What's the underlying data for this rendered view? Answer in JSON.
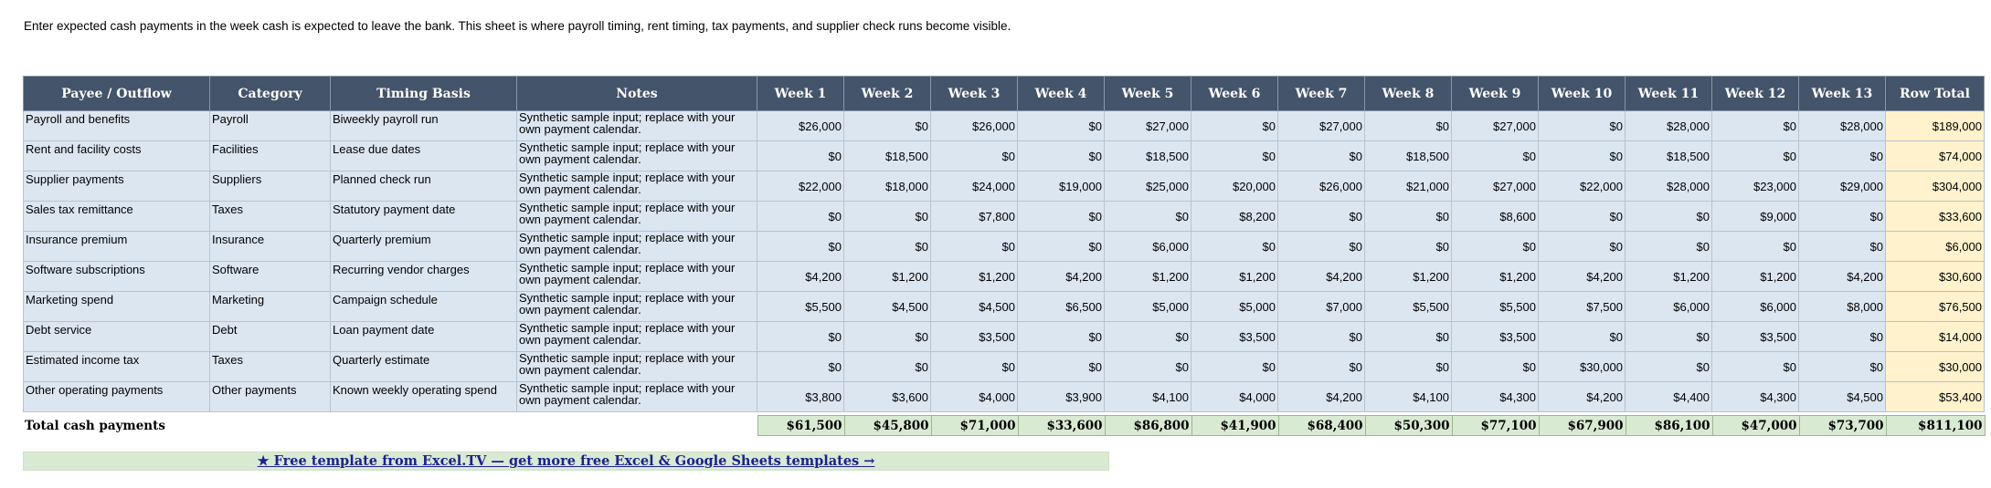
{
  "intro": "Enter expected cash payments in the week cash is expected to leave the bank. This sheet is where payroll timing, rent timing, tax payments, and supplier check runs become visible.",
  "headers": [
    "Payee / Outflow",
    "Category",
    "Timing Basis",
    "Notes",
    "Week 1",
    "Week 2",
    "Week 3",
    "Week 4",
    "Week 5",
    "Week 6",
    "Week 7",
    "Week 8",
    "Week 9",
    "Week 10",
    "Week 11",
    "Week 12",
    "Week 13",
    "Row Total"
  ],
  "rows": [
    {
      "payee": "Payroll and benefits",
      "category": "Payroll",
      "timing": "Biweekly payroll run",
      "notes": "Synthetic sample input; replace with your own payment calendar.",
      "weeks": [
        "$26,000",
        "$0",
        "$26,000",
        "$0",
        "$27,000",
        "$0",
        "$27,000",
        "$0",
        "$27,000",
        "$0",
        "$28,000",
        "$0",
        "$28,000"
      ],
      "total": "$189,000"
    },
    {
      "payee": "Rent and facility costs",
      "category": "Facilities",
      "timing": "Lease due dates",
      "notes": "Synthetic sample input; replace with your own payment calendar.",
      "weeks": [
        "$0",
        "$18,500",
        "$0",
        "$0",
        "$18,500",
        "$0",
        "$0",
        "$18,500",
        "$0",
        "$0",
        "$18,500",
        "$0",
        "$0"
      ],
      "total": "$74,000"
    },
    {
      "payee": "Supplier payments",
      "category": "Suppliers",
      "timing": "Planned check run",
      "notes": "Synthetic sample input; replace with your own payment calendar.",
      "weeks": [
        "$22,000",
        "$18,000",
        "$24,000",
        "$19,000",
        "$25,000",
        "$20,000",
        "$26,000",
        "$21,000",
        "$27,000",
        "$22,000",
        "$28,000",
        "$23,000",
        "$29,000"
      ],
      "total": "$304,000"
    },
    {
      "payee": "Sales tax remittance",
      "category": "Taxes",
      "timing": "Statutory payment date",
      "notes": "Synthetic sample input; replace with your own payment calendar.",
      "weeks": [
        "$0",
        "$0",
        "$7,800",
        "$0",
        "$0",
        "$8,200",
        "$0",
        "$0",
        "$8,600",
        "$0",
        "$0",
        "$9,000",
        "$0"
      ],
      "total": "$33,600"
    },
    {
      "payee": "Insurance premium",
      "category": "Insurance",
      "timing": "Quarterly premium",
      "notes": "Synthetic sample input; replace with your own payment calendar.",
      "weeks": [
        "$0",
        "$0",
        "$0",
        "$0",
        "$6,000",
        "$0",
        "$0",
        "$0",
        "$0",
        "$0",
        "$0",
        "$0",
        "$0"
      ],
      "total": "$6,000"
    },
    {
      "payee": "Software subscriptions",
      "category": "Software",
      "timing": "Recurring vendor charges",
      "notes": "Synthetic sample input; replace with your own payment calendar.",
      "weeks": [
        "$4,200",
        "$1,200",
        "$1,200",
        "$4,200",
        "$1,200",
        "$1,200",
        "$4,200",
        "$1,200",
        "$1,200",
        "$4,200",
        "$1,200",
        "$1,200",
        "$4,200"
      ],
      "total": "$30,600"
    },
    {
      "payee": "Marketing spend",
      "category": "Marketing",
      "timing": "Campaign schedule",
      "notes": "Synthetic sample input; replace with your own payment calendar.",
      "weeks": [
        "$5,500",
        "$4,500",
        "$4,500",
        "$6,500",
        "$5,000",
        "$5,000",
        "$7,000",
        "$5,500",
        "$5,500",
        "$7,500",
        "$6,000",
        "$6,000",
        "$8,000"
      ],
      "total": "$76,500"
    },
    {
      "payee": "Debt service",
      "category": "Debt",
      "timing": "Loan payment date",
      "notes": "Synthetic sample input; replace with your own payment calendar.",
      "weeks": [
        "$0",
        "$0",
        "$3,500",
        "$0",
        "$0",
        "$3,500",
        "$0",
        "$0",
        "$3,500",
        "$0",
        "$0",
        "$3,500",
        "$0"
      ],
      "total": "$14,000"
    },
    {
      "payee": "Estimated income tax",
      "category": "Taxes",
      "timing": "Quarterly estimate",
      "notes": "Synthetic sample input; replace with your own payment calendar.",
      "weeks": [
        "$0",
        "$0",
        "$0",
        "$0",
        "$0",
        "$0",
        "$0",
        "$0",
        "$0",
        "$30,000",
        "$0",
        "$0",
        "$0"
      ],
      "total": "$30,000"
    },
    {
      "payee": "Other operating payments",
      "category": "Other payments",
      "timing": "Known weekly operating spend",
      "notes": "Synthetic sample input; replace with your own payment calendar.",
      "weeks": [
        "$3,800",
        "$3,600",
        "$4,000",
        "$3,900",
        "$4,100",
        "$4,000",
        "$4,200",
        "$4,100",
        "$4,300",
        "$4,200",
        "$4,400",
        "$4,300",
        "$4,500"
      ],
      "total": "$53,400"
    }
  ],
  "totals": {
    "label": "Total cash payments",
    "weeks": [
      "$61,500",
      "$45,800",
      "$71,000",
      "$33,600",
      "$86,800",
      "$41,900",
      "$68,400",
      "$50,300",
      "$77,100",
      "$67,900",
      "$86,100",
      "$47,000",
      "$73,700"
    ],
    "total": "$811,100"
  },
  "footer_link": "★ Free template from Excel.TV — get more free Excel & Google Sheets templates →",
  "colors": {
    "header_bg": "#44546a",
    "row_bg": "#dce6f1",
    "total_col_bg": "#fff2cc",
    "totals_bg": "#d9ead3",
    "footer_bg": "#d9ead3",
    "link": "#1f1f8f"
  }
}
